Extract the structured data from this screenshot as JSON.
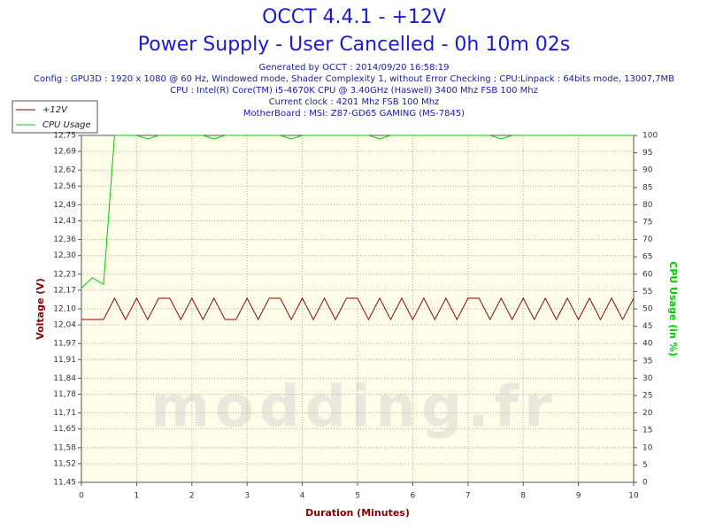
{
  "chart_data": {
    "type": "line",
    "title": "OCCT 4.4.1 - +12V",
    "subtitle": "Power Supply - User Cancelled - 0h 10m 02s",
    "info": [
      "Generated by OCCT : 2014/09/20 16:58:19",
      "Config : GPU3D : 1920 x 1080 @ 60 Hz, Windowed mode, Shader Complexity 1, without Error Checking ; CPU:Linpack : 64bits mode, 13007,7MB",
      "CPU : Intel(R) Core(TM) i5-4670K CPU @ 3.40GHz (Haswell) 3400 Mhz FSB 100 Mhz",
      "Current clock : 4201 Mhz FSB 100 Mhz",
      "MotherBoard : MSI: Z87-GD65 GAMING (MS-7845)"
    ],
    "watermark": "modding.fr",
    "xlabel": "Duration (Minutes)",
    "ylabel": "Voltage (V)",
    "y2label": "CPU Usage (in %)",
    "xlim": [
      0,
      10
    ],
    "xticks": [
      0,
      1,
      2,
      3,
      4,
      5,
      6,
      7,
      8,
      9,
      10
    ],
    "ylim": [
      11.45,
      12.75
    ],
    "yticks": [
      {
        "value": 11.45,
        "label": "11,45"
      },
      {
        "value": 11.52,
        "label": "11,52"
      },
      {
        "value": 11.58,
        "label": "11,58"
      },
      {
        "value": 11.65,
        "label": "11,65"
      },
      {
        "value": 11.71,
        "label": "11,71"
      },
      {
        "value": 11.78,
        "label": "11,78"
      },
      {
        "value": 11.84,
        "label": "11,84"
      },
      {
        "value": 11.91,
        "label": "11,91"
      },
      {
        "value": 11.97,
        "label": "11,97"
      },
      {
        "value": 12.04,
        "label": "12,04"
      },
      {
        "value": 12.1,
        "label": "12,10"
      },
      {
        "value": 12.17,
        "label": "12,17"
      },
      {
        "value": 12.23,
        "label": "12,23"
      },
      {
        "value": 12.3,
        "label": "12,30"
      },
      {
        "value": 12.36,
        "label": "12,36"
      },
      {
        "value": 12.43,
        "label": "12,43"
      },
      {
        "value": 12.49,
        "label": "12,49"
      },
      {
        "value": 12.56,
        "label": "12,56"
      },
      {
        "value": 12.62,
        "label": "12,62"
      },
      {
        "value": 12.69,
        "label": "12,69"
      },
      {
        "value": 12.75,
        "label": "12,75"
      }
    ],
    "y2lim": [
      0,
      100
    ],
    "y2ticks": [
      0,
      5,
      10,
      15,
      20,
      25,
      30,
      35,
      40,
      45,
      50,
      55,
      60,
      65,
      70,
      75,
      80,
      85,
      90,
      95,
      100
    ],
    "grid": true,
    "x": [
      0,
      0.2,
      0.4,
      0.6,
      0.8,
      1,
      1.2,
      1.4,
      1.6,
      1.8,
      2,
      2.2,
      2.4,
      2.6,
      2.8,
      3,
      3.2,
      3.4,
      3.6,
      3.8,
      4,
      4.2,
      4.4,
      4.6,
      4.8,
      5,
      5.2,
      5.4,
      5.6,
      5.8,
      6,
      6.2,
      6.4,
      6.6,
      6.8,
      7,
      7.2,
      7.4,
      7.6,
      7.8,
      8,
      8.2,
      8.4,
      8.6,
      8.8,
      9,
      9.2,
      9.4,
      9.6,
      9.8,
      10
    ],
    "series": [
      {
        "name": "+12V",
        "color": "#8b0000",
        "values": [
          12.06,
          12.06,
          12.06,
          12.14,
          12.06,
          12.14,
          12.06,
          12.14,
          12.14,
          12.06,
          12.14,
          12.06,
          12.14,
          12.06,
          12.06,
          12.14,
          12.06,
          12.14,
          12.14,
          12.06,
          12.14,
          12.06,
          12.14,
          12.06,
          12.14,
          12.14,
          12.06,
          12.14,
          12.06,
          12.14,
          12.06,
          12.14,
          12.06,
          12.14,
          12.06,
          12.14,
          12.14,
          12.06,
          12.14,
          12.06,
          12.14,
          12.06,
          12.14,
          12.06,
          12.14,
          12.06,
          12.14,
          12.06,
          12.14,
          12.06,
          12.14
        ]
      },
      {
        "name": "CPU Usage",
        "color": "#00cc00",
        "axis": "y2",
        "values": [
          56,
          59,
          57,
          100,
          100,
          100,
          99,
          100,
          100,
          100,
          100,
          100,
          99,
          100,
          100,
          100,
          100,
          100,
          100,
          99,
          100,
          100,
          100,
          100,
          100,
          100,
          100,
          99,
          100,
          100,
          100,
          100,
          100,
          100,
          100,
          100,
          100,
          100,
          99,
          100,
          100,
          100,
          100,
          100,
          100,
          100,
          100,
          100,
          100,
          100,
          100
        ]
      }
    ]
  }
}
